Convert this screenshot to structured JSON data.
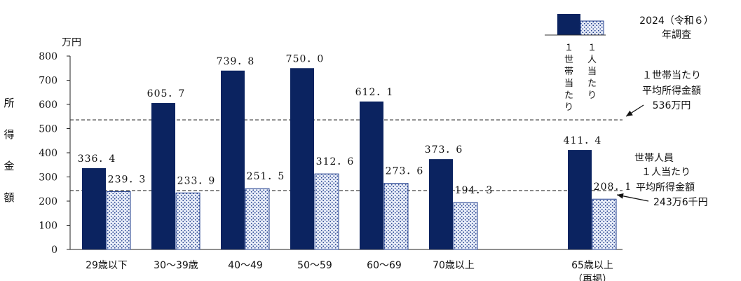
{
  "chart_data": {
    "type": "bar",
    "title": "",
    "ylabel": "所得金額",
    "yunit": "万円",
    "ylim": [
      0,
      800
    ],
    "yticks": [
      0,
      100,
      200,
      300,
      400,
      500,
      600,
      700,
      800
    ],
    "grid": false,
    "categories": [
      "29歳以下",
      "30～39歳",
      "40～49",
      "50～59",
      "60～69",
      "70歳以上",
      "65歳以上（再掲）"
    ],
    "series": [
      {
        "name": "１世帯当たり",
        "color": "#0b2360",
        "values": [
          336.4,
          605.7,
          739.8,
          750.0,
          612.1,
          373.6,
          411.4
        ],
        "labels": [
          "336．4",
          "605．7",
          "739．8",
          "750．0",
          "612．1",
          "373．6",
          "411．4"
        ]
      },
      {
        "name": "１人当たり",
        "color": "#b9c6ea",
        "pattern": "dotted",
        "values": [
          239.3,
          233.9,
          251.5,
          312.6,
          273.6,
          194.3,
          208.1
        ],
        "labels": [
          "239．3",
          "233．9",
          "251．5",
          "312．6",
          "273．6",
          "194．3",
          "208．1"
        ]
      }
    ],
    "legend": {
      "placement": "top-right",
      "note_lines": [
        "2024（令和６）",
        "年調査"
      ]
    },
    "reference_lines": [
      {
        "value": 536,
        "style": "dashed",
        "label_lines": [
          "１世帯当たり",
          "平均所得金額",
          "536万円"
        ]
      },
      {
        "value": 243.6,
        "style": "dashed",
        "label_lines": [
          "世帯人員",
          "１人当たり",
          "平均所得金額",
          "243万6千円"
        ]
      }
    ]
  }
}
